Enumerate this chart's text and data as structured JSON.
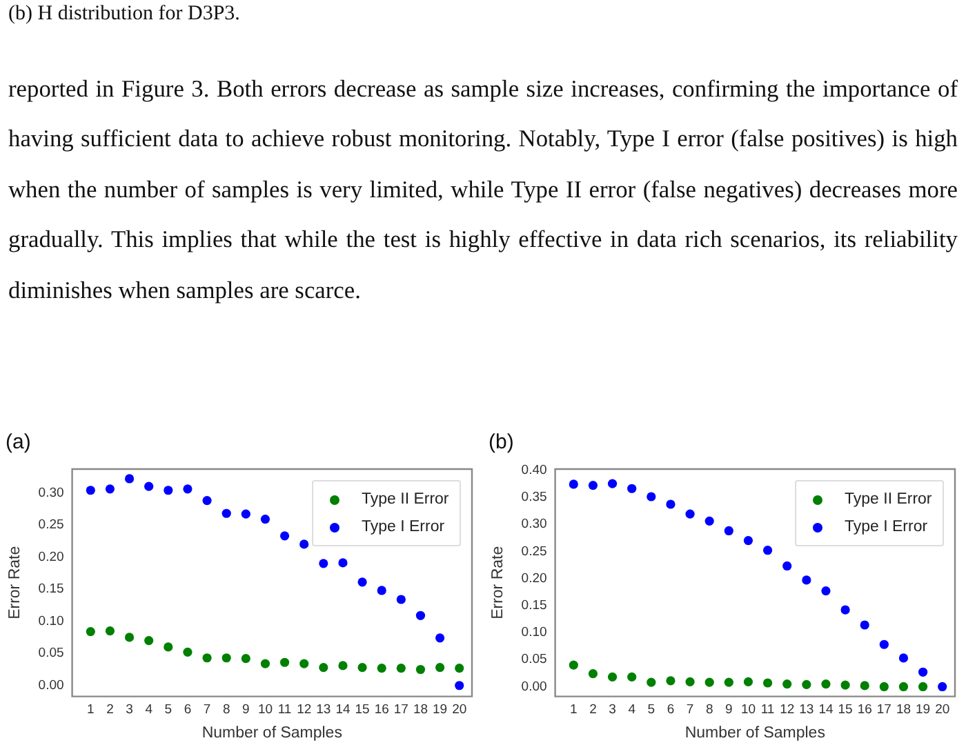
{
  "chart_data": [
    {
      "type": "other",
      "annotations": [
        "(b) H distribution for D3P3.",
        "reported in Figure 3. Both errors decrease as sample size increases, confirming the importance of having sufficient data to achieve robust monitoring. Notably, Type I error (false positives) is high when the number of samples is very limited, while Type II error (false negatives) decreases more gradually. This implies that while the test is highly effective in data rich scenarios, its reliability diminishes when samples are scarce."
      ]
    },
    {
      "type": "scatter",
      "title": "(a)",
      "xlabel": "Number of Samples",
      "ylabel": "Error Rate",
      "x": [
        1,
        2,
        3,
        4,
        5,
        6,
        7,
        8,
        9,
        10,
        11,
        12,
        13,
        14,
        15,
        16,
        17,
        18,
        19,
        20
      ],
      "series": [
        {
          "name": "Type II Error",
          "color": "#008000",
          "values": [
            0.084,
            0.085,
            0.075,
            0.07,
            0.06,
            0.052,
            0.043,
            0.043,
            0.042,
            0.034,
            0.036,
            0.034,
            0.028,
            0.031,
            0.028,
            0.027,
            0.027,
            0.025,
            0.028,
            0.027
          ]
        },
        {
          "name": "Type I Error",
          "color": "#0000ff",
          "values": [
            0.304,
            0.306,
            0.322,
            0.31,
            0.304,
            0.306,
            0.288,
            0.268,
            0.267,
            0.259,
            0.233,
            0.22,
            0.19,
            0.191,
            0.161,
            0.148,
            0.134,
            0.109,
            0.074,
            0.0
          ]
        }
      ],
      "xlim": [
        0.05,
        20.65
      ],
      "xticks": [
        1,
        2,
        3,
        4,
        5,
        6,
        7,
        8,
        9,
        10,
        11,
        12,
        13,
        14,
        15,
        16,
        17,
        18,
        19,
        20
      ],
      "ylim": [
        -0.017,
        0.337
      ],
      "yticks": [
        {
          "value": 0,
          "label": "0.00"
        },
        {
          "value": 0.05,
          "label": "0.05"
        },
        {
          "value": 0.1,
          "label": "0.10"
        },
        {
          "value": 0.15,
          "label": "0.15"
        },
        {
          "value": 0.2,
          "label": "0.20"
        },
        {
          "value": 0.25,
          "label": "0.25"
        },
        {
          "value": 0.3,
          "label": "0.30"
        }
      ],
      "grid": false,
      "legend": "top right",
      "marker": "circle"
    },
    {
      "type": "scatter",
      "title": "(b)",
      "xlabel": "Number of Samples",
      "ylabel": "Error Rate",
      "x": [
        1,
        2,
        3,
        4,
        5,
        6,
        7,
        8,
        9,
        10,
        11,
        12,
        13,
        14,
        15,
        16,
        17,
        18,
        19,
        20
      ],
      "series": [
        {
          "name": "Type II Error",
          "color": "#008000",
          "values": [
            0.04,
            0.024,
            0.018,
            0.018,
            0.008,
            0.011,
            0.009,
            0.008,
            0.008,
            0.009,
            0.007,
            0.005,
            0.004,
            0.005,
            0.003,
            0.002,
            0.0,
            0.0,
            0.0,
            null
          ]
        },
        {
          "name": "Type I Error",
          "color": "#0000ff",
          "values": [
            0.374,
            0.372,
            0.375,
            0.366,
            0.351,
            0.337,
            0.319,
            0.306,
            0.288,
            0.27,
            0.252,
            0.223,
            0.197,
            0.177,
            0.142,
            0.114,
            0.078,
            0.053,
            0.027,
            0.0
          ]
        }
      ],
      "xlim": [
        0.05,
        20.65
      ],
      "xticks": [
        1,
        2,
        3,
        4,
        5,
        6,
        7,
        8,
        9,
        10,
        11,
        12,
        13,
        14,
        15,
        16,
        17,
        18,
        19,
        20
      ],
      "ylim": [
        -0.018,
        0.402
      ],
      "yticks": [
        {
          "value": 0,
          "label": "0.00"
        },
        {
          "value": 0.05,
          "label": "0.05"
        },
        {
          "value": 0.1,
          "label": "0.10"
        },
        {
          "value": 0.15,
          "label": "0.15"
        },
        {
          "value": 0.2,
          "label": "0.20"
        },
        {
          "value": 0.25,
          "label": "0.25"
        },
        {
          "value": 0.3,
          "label": "0.30"
        },
        {
          "value": 0.35,
          "label": "0.35"
        },
        {
          "value": 0.4,
          "label": "0.40"
        }
      ],
      "grid": false,
      "legend": "top right",
      "marker": "circle"
    }
  ]
}
